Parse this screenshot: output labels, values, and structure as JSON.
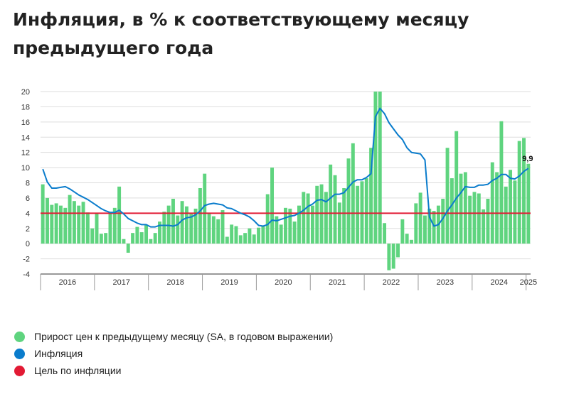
{
  "title": "Инфляция, в % к соответствующему месяцу предыдущего года",
  "colors": {
    "bars": "#5fd47f",
    "line": "#0a7ccc",
    "target": "#e21a34",
    "grid": "#dddddd",
    "axis": "#333333"
  },
  "legend": [
    {
      "label": "Прирост цен к предыдущему месяцу (SA, в годовом выражении)",
      "color": "#5fd47f"
    },
    {
      "label": "Инфляция",
      "color": "#0a7ccc"
    },
    {
      "label": "Цель по инфляции",
      "color": "#e21a34"
    }
  ],
  "chart_data": {
    "type": "bar+line",
    "ylim": [
      -4,
      20
    ],
    "y_ticks": [
      "-4",
      "-2",
      "0",
      "2",
      "4",
      "6",
      "8",
      "10",
      "12",
      "14",
      "16",
      "18",
      "20"
    ],
    "x_period_labels": [
      "2016",
      "2017",
      "2018",
      "2019",
      "2020",
      "2021",
      "2022",
      "2023",
      "2024",
      "2025"
    ],
    "period_start": "2016-01",
    "period_end": "2025-01",
    "grid": true,
    "last_value_label": "9,9",
    "series": [
      {
        "name": "Прирост цен к предыдущему месяцу (SA, в годовом выражении)",
        "type": "bar",
        "values": [
          7.8,
          6.0,
          5.1,
          5.3,
          5.0,
          4.7,
          6.4,
          5.6,
          5.0,
          5.5,
          4.1,
          2.0,
          4.0,
          1.3,
          1.4,
          4.1,
          4.7,
          7.5,
          0.6,
          -1.2,
          1.4,
          2.2,
          1.5,
          2.5,
          0.6,
          1.4,
          2.9,
          4.2,
          5.0,
          5.9,
          3.7,
          5.6,
          4.9,
          3.9,
          4.6,
          7.3,
          9.2,
          4.0,
          3.6,
          3.2,
          4.4,
          0.9,
          2.5,
          2.3,
          1.1,
          1.4,
          2.0,
          1.2,
          2.1,
          2.4,
          6.5,
          10.0,
          3.6,
          2.5,
          4.7,
          4.6,
          2.9,
          5.0,
          6.8,
          6.6,
          5.0,
          7.6,
          7.8,
          6.8,
          10.4,
          9.0,
          5.4,
          7.3,
          11.2,
          13.2,
          7.6,
          8.2,
          8.6,
          12.6,
          20.0,
          20.0,
          2.7,
          -3.5,
          -3.3,
          -1.8,
          3.2,
          1.3,
          0.5,
          5.3,
          6.7,
          3.7,
          4.6,
          4.3,
          5.0,
          5.9,
          12.6,
          8.6,
          14.8,
          9.2,
          9.4,
          6.3,
          6.8,
          6.6,
          4.5,
          5.9,
          10.7,
          9.4,
          16.1,
          7.5,
          9.7,
          8.3,
          13.5,
          13.9,
          10.5
        ]
      },
      {
        "name": "Инфляция",
        "type": "line",
        "values": [
          9.8,
          8.1,
          7.3,
          7.3,
          7.4,
          7.5,
          7.2,
          6.8,
          6.4,
          6.1,
          5.8,
          5.4,
          5.0,
          4.6,
          4.3,
          4.1,
          4.1,
          4.4,
          3.9,
          3.3,
          3.0,
          2.7,
          2.5,
          2.5,
          2.2,
          2.2,
          2.4,
          2.4,
          2.4,
          2.3,
          2.5,
          3.1,
          3.4,
          3.5,
          3.8,
          4.3,
          5.0,
          5.2,
          5.3,
          5.2,
          5.1,
          4.7,
          4.6,
          4.3,
          4.0,
          3.8,
          3.5,
          3.0,
          2.4,
          2.3,
          2.5,
          3.1,
          3.0,
          3.2,
          3.4,
          3.6,
          3.7,
          4.0,
          4.4,
          4.9,
          5.2,
          5.7,
          5.8,
          5.5,
          6.0,
          6.5,
          6.5,
          6.7,
          7.4,
          8.1,
          8.4,
          8.4,
          8.7,
          9.2,
          16.7,
          17.8,
          17.1,
          15.9,
          15.1,
          14.3,
          13.7,
          12.6,
          12.0,
          11.9,
          11.8,
          11.0,
          3.5,
          2.3,
          2.5,
          3.3,
          4.3,
          5.1,
          6.0,
          6.7,
          7.5,
          7.4,
          7.4,
          7.7,
          7.7,
          7.8,
          8.3,
          8.6,
          9.1,
          9.1,
          8.6,
          8.5,
          8.9,
          9.5,
          9.9
        ]
      },
      {
        "name": "Цель по инфляции",
        "type": "line",
        "values": [
          4
        ]
      }
    ]
  }
}
